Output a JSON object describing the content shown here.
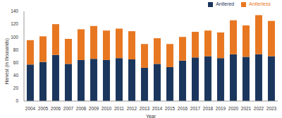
{
  "chart_data": {
    "type": "bar",
    "x_label": "Year",
    "y_label": "Harvest (in thousands)",
    "categories": [
      "2004",
      "2005",
      "2006",
      "2007",
      "2008",
      "2009",
      "2010",
      "2011",
      "2012",
      "2013",
      "2014",
      "2015",
      "2016",
      "2017",
      "2018",
      "2019",
      "2020",
      "2021",
      "2022",
      "2023"
    ],
    "series": [
      {
        "name": "Antlered",
        "color": "#1b365d",
        "values": [
          57,
          61,
          72,
          58,
          64,
          66,
          64,
          67,
          65,
          52,
          58,
          53,
          63,
          68,
          70,
          67,
          73,
          69,
          73,
          70
        ]
      },
      {
        "name": "Antlerless",
        "color": "#e87722",
        "values": [
          38,
          40,
          48,
          39,
          48,
          51,
          46,
          46,
          44,
          37,
          40,
          36,
          37,
          40,
          40,
          40,
          53,
          49,
          61,
          55
        ]
      }
    ],
    "ylim": [
      0,
      140
    ],
    "yticks": [
      0,
      20,
      40,
      60,
      80,
      100,
      120,
      140
    ],
    "stacked": true,
    "grid": false,
    "legend": "top-right"
  }
}
